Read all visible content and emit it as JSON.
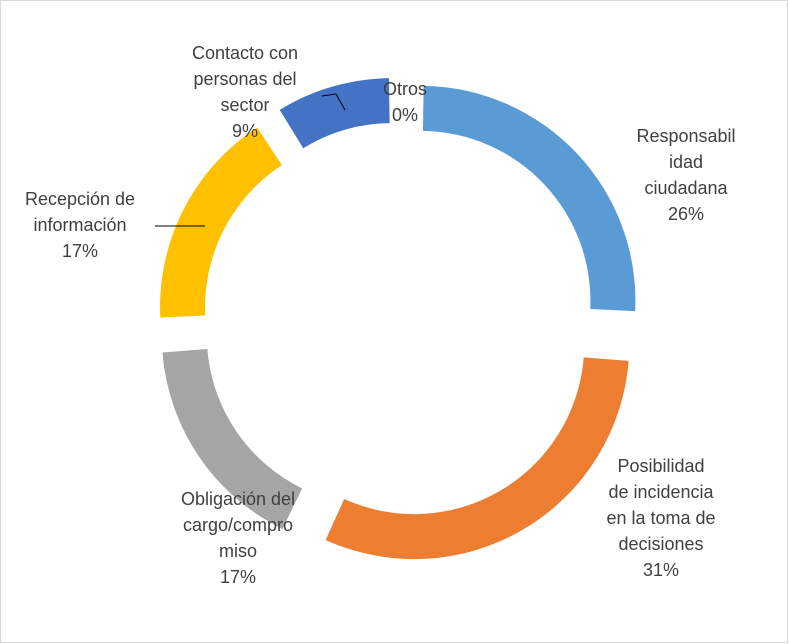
{
  "chart_data": {
    "type": "donut",
    "categories": [
      "Responsabilidad ciudadana",
      "Posibilidad de incidencia en la toma de decisiones",
      "Obligación del cargo/compromiso",
      "Recepción de información",
      "Contacto con personas del sector",
      "Otros"
    ],
    "values": [
      26,
      31,
      17,
      17,
      9,
      0
    ],
    "value_labels": [
      "26%",
      "31%",
      "17%",
      "17%",
      "9%",
      "0%"
    ],
    "colors": [
      "#5b9bd5",
      "#ed7d31",
      "#a5a5a5",
      "#ffc000",
      "#4472c4",
      "#70ad47"
    ]
  }
}
